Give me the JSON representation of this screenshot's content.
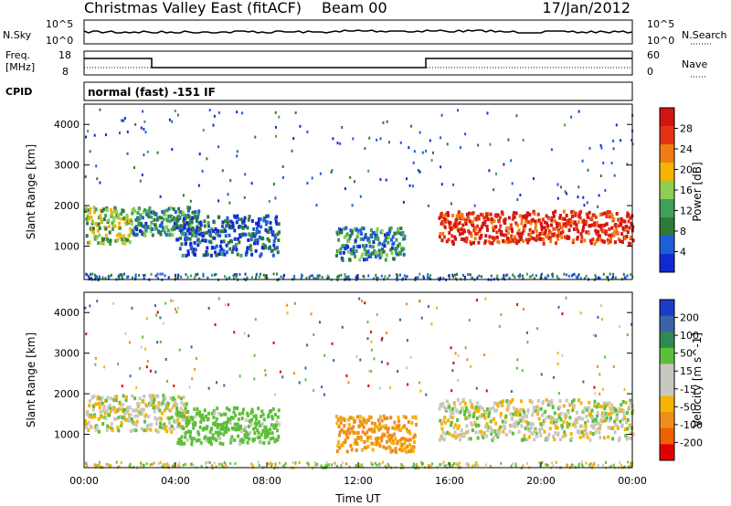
{
  "header": {
    "title": "Christmas Valley East (fitACF)",
    "beam": "Beam 00",
    "date": "17/Jan/2012"
  },
  "mini_panels": {
    "nsky_label": "N.Sky",
    "nsky_ticks": [
      "10^5",
      "10^0"
    ],
    "nsearch_label": "N.Search",
    "nsearch_ticks": [
      "10^5",
      "10^0"
    ],
    "freq_label_1": "Freq.",
    "freq_label_2": "[MHz]",
    "freq_ticks": [
      "18",
      "8"
    ],
    "nave_label": "Nave",
    "nave_ticks": [
      "60",
      "0"
    ],
    "cpid_label": "CPID",
    "cpid_text": "normal (fast) -151 IF"
  },
  "colors": {
    "power_scale": [
      "#1428d2",
      "#1e5fd9",
      "#2f7a3a",
      "#3fa05a",
      "#8ccf52",
      "#f4b400",
      "#f07d14",
      "#e63214",
      "#d21414"
    ],
    "velocity_scale": [
      "#e00000",
      "#f06000",
      "#f08c1e",
      "#f4b400",
      "#c8c8c0",
      "#c8c8c0",
      "#5cbf3a",
      "#2f8a52",
      "#3a63a8",
      "#1a3cc8"
    ]
  },
  "chart_data": [
    {
      "type": "heatmap",
      "name": "power",
      "xlabel": "",
      "ylabel": "Slant Range [km]",
      "xlim": [
        "00:00",
        "24:00"
      ],
      "ylim": [
        180,
        4500
      ],
      "yticks": [
        "1000",
        "2000",
        "3000",
        "4000"
      ],
      "colorbar": {
        "label": "Power [dB]",
        "ticks": [
          "28",
          "24",
          "20",
          "16",
          "12",
          "8",
          "4"
        ]
      },
      "regions": [
        {
          "t_start_h": 0.0,
          "t_end_h": 2.0,
          "range_low_km": 1100,
          "range_high_km": 2000,
          "power_db": 16
        },
        {
          "t_start_h": 2.0,
          "t_end_h": 5.0,
          "range_low_km": 1300,
          "range_high_km": 2000,
          "power_db": 12
        },
        {
          "t_start_h": 4.0,
          "t_end_h": 8.5,
          "range_low_km": 800,
          "range_high_km": 1800,
          "power_db": 8
        },
        {
          "t_start_h": 11.0,
          "t_end_h": 14.0,
          "range_low_km": 700,
          "range_high_km": 1500,
          "power_db": 12
        },
        {
          "t_start_h": 15.5,
          "t_end_h": 24.0,
          "range_low_km": 1100,
          "range_high_km": 1900,
          "power_db": 28
        }
      ]
    },
    {
      "type": "heatmap",
      "name": "velocity",
      "xlabel": "Time UT",
      "ylabel": "Slant Range [km]",
      "xlim": [
        "00:00",
        "24:00"
      ],
      "ylim": [
        180,
        4500
      ],
      "xticks": [
        "00:00",
        "04:00",
        "08:00",
        "12:00",
        "16:00",
        "20:00",
        "00:00"
      ],
      "yticks": [
        "1000",
        "2000",
        "3000",
        "4000"
      ],
      "colorbar": {
        "label": "Velocity [m s^-1]",
        "ticks": [
          "200",
          "100",
          "50",
          "15",
          "-15",
          "-50",
          "-100",
          "-200"
        ]
      },
      "regions": [
        {
          "t_start_h": 0.0,
          "t_end_h": 4.5,
          "range_low_km": 1100,
          "range_high_km": 2000,
          "velocity_ms": 0
        },
        {
          "t_start_h": 4.0,
          "t_end_h": 8.5,
          "range_low_km": 800,
          "range_high_km": 1700,
          "velocity_ms": 40
        },
        {
          "t_start_h": 11.0,
          "t_end_h": 14.5,
          "range_low_km": 600,
          "range_high_km": 1500,
          "velocity_ms": -60
        },
        {
          "t_start_h": 15.5,
          "t_end_h": 24.0,
          "range_low_km": 900,
          "range_high_km": 1900,
          "velocity_ms": 0
        }
      ]
    }
  ]
}
